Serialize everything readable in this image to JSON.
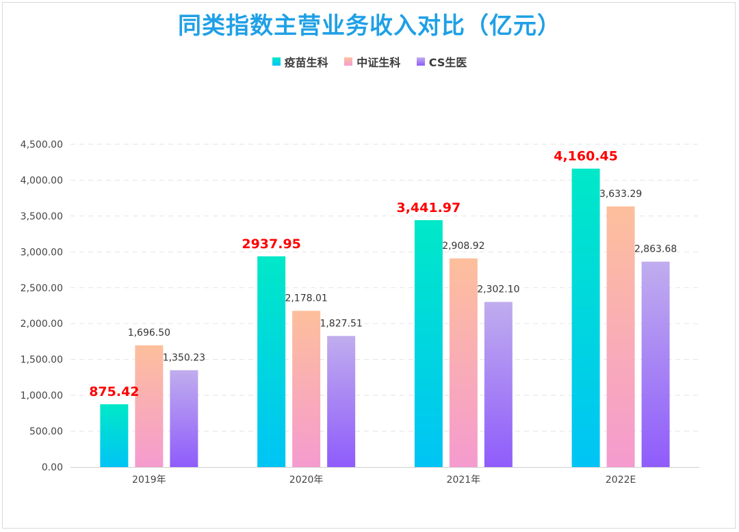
{
  "title": "同类指数主营业务收入对比（亿元）",
  "chart_data": {
    "type": "bar",
    "categories": [
      "2019年",
      "2020年",
      "2021年",
      "2022E"
    ],
    "series": [
      {
        "name": "疫苗生科",
        "values": [
          875.42,
          2937.95,
          3441.97,
          4160.45
        ],
        "labels": [
          "875.42",
          "2937.95",
          "3,441.97",
          "4,160.45"
        ],
        "color_top": "#00e8c8",
        "color_bottom": "#00c4f5",
        "label_color": "#ff0000"
      },
      {
        "name": "中证生科",
        "values": [
          1696.5,
          2178.01,
          2908.92,
          3633.29
        ],
        "labels": [
          "1,696.50",
          "2,178.01",
          "2,908.92",
          "3,633.29"
        ],
        "color_top": "#fdbf9c",
        "color_bottom": "#f59bcf",
        "label_color": "#333333"
      },
      {
        "name": "CS生医",
        "values": [
          1350.23,
          1827.51,
          2302.1,
          2863.68
        ],
        "labels": [
          "1,350.23",
          "1,827.51",
          "2,302.10",
          "2,863.68"
        ],
        "color_top": "#c0adee",
        "color_bottom": "#8f5cfb",
        "label_color": "#333333"
      }
    ],
    "yticks": [
      "0.00",
      "500.00",
      "1,000.00",
      "1,500.00",
      "2,000.00",
      "2,500.00",
      "3,000.00",
      "3,500.00",
      "4,000.00",
      "4,500.00"
    ],
    "ylim": [
      0,
      4500
    ],
    "grid": true,
    "legend_position": "top"
  }
}
